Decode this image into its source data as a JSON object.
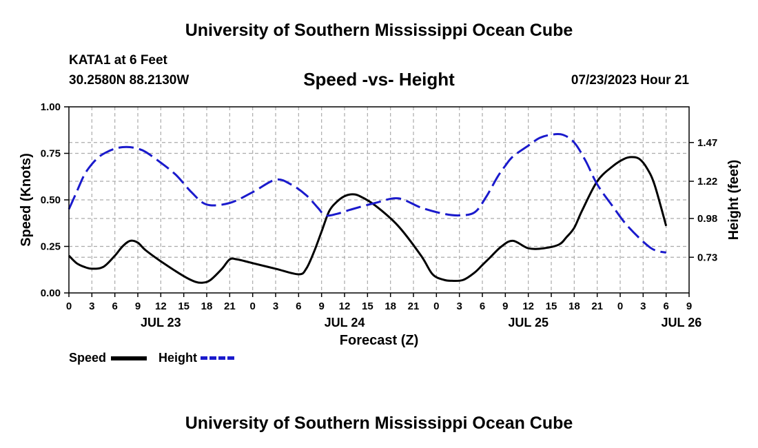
{
  "header": {
    "title": "University of Southern Mississippi Ocean Cube",
    "station": "KATA1 at 6 Feet",
    "coords": "30.2580N  88.2130W",
    "subtitle": "Speed -vs- Height",
    "datetime": "07/23/2023 Hour 21"
  },
  "footer": {
    "title": "University of Southern Mississippi Ocean Cube"
  },
  "legend": {
    "speed_label": "Speed",
    "height_label": "Height"
  },
  "colors": {
    "speed": "#000000",
    "height": "#1a1acc",
    "grid": "#aaaaaa"
  },
  "chart_data": {
    "type": "line",
    "title": "Speed -vs- Height",
    "xlabel": "Forecast (Z)",
    "ylabel_left": "Speed (Knots)",
    "ylabel_right": "Height (feet)",
    "x_range_hours": [
      0,
      81
    ],
    "x_ticks": [
      {
        "h": 0,
        "label": "0"
      },
      {
        "h": 3,
        "label": "3"
      },
      {
        "h": 6,
        "label": "6"
      },
      {
        "h": 9,
        "label": "9"
      },
      {
        "h": 12,
        "label": "12"
      },
      {
        "h": 15,
        "label": "15"
      },
      {
        "h": 18,
        "label": "18"
      },
      {
        "h": 21,
        "label": "21"
      },
      {
        "h": 24,
        "label": "0"
      },
      {
        "h": 27,
        "label": "3"
      },
      {
        "h": 30,
        "label": "6"
      },
      {
        "h": 33,
        "label": "9"
      },
      {
        "h": 36,
        "label": "12"
      },
      {
        "h": 39,
        "label": "15"
      },
      {
        "h": 42,
        "label": "18"
      },
      {
        "h": 45,
        "label": "21"
      },
      {
        "h": 48,
        "label": "0"
      },
      {
        "h": 51,
        "label": "3"
      },
      {
        "h": 54,
        "label": "6"
      },
      {
        "h": 57,
        "label": "9"
      },
      {
        "h": 60,
        "label": "12"
      },
      {
        "h": 63,
        "label": "15"
      },
      {
        "h": 66,
        "label": "18"
      },
      {
        "h": 69,
        "label": "21"
      },
      {
        "h": 72,
        "label": "0"
      },
      {
        "h": 75,
        "label": "3"
      },
      {
        "h": 78,
        "label": "6"
      },
      {
        "h": 81,
        "label": "9"
      }
    ],
    "date_labels": [
      {
        "h": 12,
        "label": "JUL 23"
      },
      {
        "h": 36,
        "label": "JUL 24"
      },
      {
        "h": 60,
        "label": "JUL 25"
      },
      {
        "h": 80,
        "label": "JUL 26"
      }
    ],
    "y_left": {
      "range": [
        0,
        1.0
      ],
      "ticks": [
        "0.00",
        "0.25",
        "0.50",
        "0.75",
        "1.00"
      ],
      "tick_values": [
        0,
        0.25,
        0.5,
        0.75,
        1.0
      ]
    },
    "y_right": {
      "range": [
        0.5,
        1.7
      ],
      "ticks": [
        "0.73",
        "0.98",
        "1.22",
        "1.47"
      ],
      "tick_values": [
        0.73,
        0.98,
        1.22,
        1.47
      ]
    },
    "series": [
      {
        "name": "Speed",
        "axis": "left",
        "style": "solid",
        "x": [
          0,
          1,
          2,
          3,
          4.5,
          6,
          7,
          8,
          9,
          10,
          12,
          15,
          16.5,
          17.5,
          18.5,
          20,
          21,
          22,
          24,
          27,
          30,
          31,
          32,
          33,
          34,
          35,
          36,
          37,
          38,
          40,
          43,
          46,
          47.5,
          49,
          50,
          51.5,
          53,
          54,
          55,
          56.5,
          58,
          60,
          62,
          64,
          65,
          66,
          67,
          69,
          71,
          72.5,
          73.5,
          74.5,
          75.5,
          76.5,
          78
        ],
        "y": [
          0.2,
          0.16,
          0.14,
          0.13,
          0.14,
          0.2,
          0.25,
          0.28,
          0.27,
          0.23,
          0.17,
          0.09,
          0.06,
          0.055,
          0.07,
          0.13,
          0.18,
          0.18,
          0.16,
          0.13,
          0.1,
          0.13,
          0.22,
          0.33,
          0.44,
          0.49,
          0.52,
          0.53,
          0.52,
          0.47,
          0.36,
          0.2,
          0.1,
          0.07,
          0.065,
          0.07,
          0.11,
          0.15,
          0.19,
          0.25,
          0.28,
          0.24,
          0.24,
          0.26,
          0.3,
          0.35,
          0.44,
          0.6,
          0.68,
          0.72,
          0.73,
          0.72,
          0.67,
          0.58,
          0.36
        ]
      },
      {
        "name": "Height",
        "axis": "right",
        "style": "dashed",
        "x": [
          0,
          1,
          2,
          3,
          4,
          5,
          6,
          7,
          8,
          9,
          10,
          12,
          14,
          16,
          18,
          21,
          24,
          27,
          29,
          31,
          32.5,
          33.5,
          35,
          37,
          40,
          43,
          46,
          49,
          51,
          53,
          54.5,
          56,
          57,
          58,
          60,
          61.5,
          63,
          64.5,
          66,
          67.5,
          69,
          71,
          73,
          76,
          78
        ],
        "y": [
          1.04,
          1.15,
          1.26,
          1.33,
          1.38,
          1.41,
          1.43,
          1.44,
          1.44,
          1.43,
          1.41,
          1.34,
          1.26,
          1.15,
          1.07,
          1.08,
          1.15,
          1.23,
          1.2,
          1.13,
          1.05,
          1.0,
          1.01,
          1.04,
          1.08,
          1.11,
          1.05,
          1.01,
          1.0,
          1.02,
          1.12,
          1.25,
          1.32,
          1.38,
          1.45,
          1.5,
          1.52,
          1.52,
          1.47,
          1.35,
          1.2,
          1.06,
          0.93,
          0.79,
          0.76
        ]
      }
    ]
  }
}
